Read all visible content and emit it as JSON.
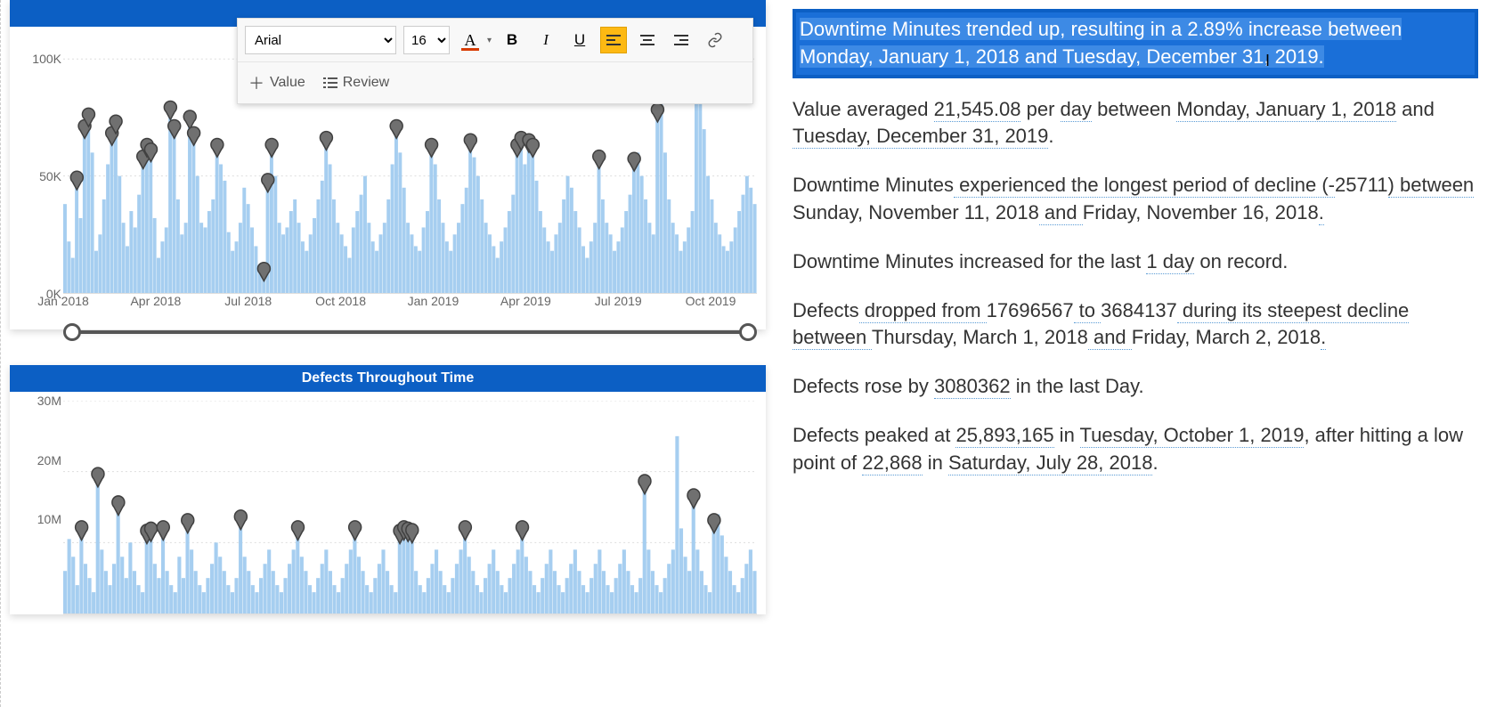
{
  "toolbar": {
    "font_family": "Arial",
    "font_size": "16",
    "font_color": "#d83b01",
    "align_active": "left",
    "value_label": "Value",
    "review_label": "Review"
  },
  "chart1": {
    "type": "bar-with-markers",
    "title_hidden": true,
    "colors": {
      "bar": "#a6cef0",
      "marker_fill": "#707070",
      "marker_stroke": "#404040",
      "header_bg": "#0c5fc4",
      "grid": "#dddddd"
    },
    "y": {
      "max": 110000,
      "ticks": [
        {
          "v": 0,
          "l": "0K"
        },
        {
          "v": 50000,
          "l": "50K"
        },
        {
          "v": 100000,
          "l": "100K"
        }
      ]
    },
    "x_labels": [
      "Jan 2018",
      "Apr 2018",
      "Jul 2018",
      "Oct 2018",
      "Jan 2019",
      "Apr 2019",
      "Jul 2019",
      "Oct 2019"
    ],
    "bars": [
      38000,
      22000,
      15000,
      46000,
      32000,
      68000,
      73000,
      60000,
      18000,
      25000,
      40000,
      55000,
      65000,
      70000,
      50000,
      30000,
      20000,
      35000,
      28000,
      42000,
      55000,
      60000,
      58000,
      32000,
      15000,
      22000,
      28000,
      76000,
      68000,
      40000,
      25000,
      30000,
      72000,
      65000,
      50000,
      30000,
      28000,
      35000,
      40000,
      60000,
      55000,
      48000,
      26000,
      18000,
      22000,
      30000,
      45000,
      38000,
      28000,
      20000,
      12000,
      7000,
      45000,
      60000,
      50000,
      30000,
      25000,
      28000,
      35000,
      40000,
      30000,
      22000,
      18000,
      25000,
      32000,
      40000,
      48000,
      63000,
      55000,
      40000,
      30000,
      25000,
      20000,
      15000,
      28000,
      35000,
      42000,
      50000,
      30000,
      22000,
      18000,
      25000,
      30000,
      40000,
      55000,
      68000,
      60000,
      45000,
      30000,
      25000,
      20000,
      18000,
      28000,
      35000,
      60000,
      55000,
      40000,
      30000,
      22000,
      18000,
      25000,
      30000,
      38000,
      45000,
      62000,
      58000,
      50000,
      40000,
      30000,
      25000,
      20000,
      15000,
      22000,
      28000,
      35000,
      42000,
      60000,
      63000,
      55000,
      62000,
      60000,
      48000,
      35000,
      28000,
      22000,
      18000,
      25000,
      30000,
      40000,
      50000,
      45000,
      35000,
      28000,
      20000,
      15000,
      22000,
      30000,
      55000,
      40000,
      30000,
      25000,
      18000,
      22000,
      28000,
      35000,
      42000,
      54000,
      60000,
      50000,
      40000,
      30000,
      25000,
      75000,
      95000,
      60000,
      40000,
      30000,
      25000,
      18000,
      22000,
      28000,
      35000,
      105000,
      85000,
      70000,
      50000,
      40000,
      30000,
      25000,
      20000,
      18000,
      22000,
      28000,
      35000,
      42000,
      50000,
      45000,
      38000
    ],
    "markers": [
      {
        "i": 3,
        "v": 46000
      },
      {
        "i": 5,
        "v": 68000
      },
      {
        "i": 6,
        "v": 73000
      },
      {
        "i": 12,
        "v": 65000
      },
      {
        "i": 13,
        "v": 70000
      },
      {
        "i": 20,
        "v": 55000
      },
      {
        "i": 21,
        "v": 60000
      },
      {
        "i": 22,
        "v": 58000
      },
      {
        "i": 27,
        "v": 76000
      },
      {
        "i": 28,
        "v": 68000
      },
      {
        "i": 32,
        "v": 72000
      },
      {
        "i": 33,
        "v": 65000
      },
      {
        "i": 39,
        "v": 60000
      },
      {
        "i": 51,
        "v": 7000
      },
      {
        "i": 52,
        "v": 45000
      },
      {
        "i": 53,
        "v": 60000
      },
      {
        "i": 67,
        "v": 63000
      },
      {
        "i": 85,
        "v": 68000
      },
      {
        "i": 94,
        "v": 60000
      },
      {
        "i": 104,
        "v": 62000
      },
      {
        "i": 116,
        "v": 60000
      },
      {
        "i": 117,
        "v": 63000
      },
      {
        "i": 119,
        "v": 62000
      },
      {
        "i": 120,
        "v": 60000
      },
      {
        "i": 137,
        "v": 55000
      },
      {
        "i": 146,
        "v": 54000
      },
      {
        "i": 152,
        "v": 75000
      },
      {
        "i": 153,
        "v": 95000
      },
      {
        "i": 162,
        "v": 105000
      },
      {
        "i": 163,
        "v": 85000
      }
    ]
  },
  "chart2": {
    "type": "bar-with-markers",
    "title": "Defects Throughout Time",
    "colors": {
      "bar": "#a6cef0",
      "marker_fill": "#707070",
      "marker_stroke": "#404040",
      "header_bg": "#0c5fc4"
    },
    "y": {
      "max": 30000000,
      "ticks": [
        {
          "v": 10000000,
          "l": "10M"
        },
        {
          "v": 20000000,
          "l": "20M"
        },
        {
          "v": 30000000,
          "l": "30M"
        }
      ]
    },
    "bars": [
      6000000,
      10500000,
      8000000,
      4000000,
      11000000,
      7000000,
      5000000,
      3000000,
      18500000,
      9000000,
      6000000,
      4000000,
      7000000,
      14500000,
      8000000,
      5000000,
      10000000,
      6000000,
      4000000,
      3000000,
      10500000,
      10800000,
      7000000,
      5000000,
      11000000,
      6000000,
      4000000,
      3000000,
      8000000,
      5000000,
      12000000,
      9000000,
      6000000,
      4000000,
      3000000,
      5000000,
      7000000,
      10000000,
      8000000,
      6000000,
      4000000,
      3000000,
      5000000,
      12500000,
      8000000,
      6000000,
      4000000,
      3000000,
      5000000,
      7000000,
      9000000,
      6000000,
      4000000,
      3000000,
      5000000,
      7000000,
      9000000,
      11000000,
      8000000,
      6000000,
      4000000,
      3000000,
      5000000,
      7000000,
      9000000,
      6000000,
      4000000,
      3000000,
      5000000,
      7000000,
      9000000,
      11000000,
      8000000,
      6000000,
      4000000,
      3000000,
      5000000,
      7000000,
      9000000,
      6000000,
      4000000,
      3000000,
      10500000,
      11000000,
      10800000,
      10600000,
      6000000,
      4000000,
      3000000,
      5000000,
      7000000,
      9000000,
      6000000,
      4000000,
      3000000,
      5000000,
      7000000,
      9000000,
      11000000,
      8000000,
      6000000,
      4000000,
      3000000,
      5000000,
      7000000,
      9000000,
      6000000,
      4000000,
      3000000,
      5000000,
      7000000,
      9000000,
      11000000,
      8000000,
      6000000,
      4000000,
      3000000,
      5000000,
      7000000,
      9000000,
      6000000,
      4000000,
      3000000,
      5000000,
      7000000,
      9000000,
      6000000,
      4000000,
      3000000,
      5000000,
      7000000,
      9000000,
      6000000,
      4000000,
      3000000,
      5000000,
      7000000,
      9000000,
      6000000,
      4000000,
      3000000,
      5000000,
      17500000,
      9000000,
      6000000,
      4000000,
      3000000,
      5000000,
      7000000,
      9000000,
      25000000,
      12000000,
      8000000,
      6000000,
      15500000,
      9000000,
      6000000,
      4000000,
      3000000,
      12000000,
      14000000,
      11000000,
      8000000,
      6000000,
      4000000,
      3000000,
      5000000,
      7000000,
      9000000,
      6000000
    ],
    "markers": [
      {
        "i": 4,
        "v": 11000000
      },
      {
        "i": 8,
        "v": 18500000
      },
      {
        "i": 13,
        "v": 14500000
      },
      {
        "i": 20,
        "v": 10500000
      },
      {
        "i": 21,
        "v": 10800000
      },
      {
        "i": 24,
        "v": 11000000
      },
      {
        "i": 30,
        "v": 12000000
      },
      {
        "i": 43,
        "v": 12500000
      },
      {
        "i": 57,
        "v": 11000000
      },
      {
        "i": 71,
        "v": 11000000
      },
      {
        "i": 82,
        "v": 10500000
      },
      {
        "i": 83,
        "v": 11000000
      },
      {
        "i": 84,
        "v": 10800000
      },
      {
        "i": 85,
        "v": 10600000
      },
      {
        "i": 98,
        "v": 11000000
      },
      {
        "i": 112,
        "v": 11000000
      },
      {
        "i": 142,
        "v": 17500000
      },
      {
        "i": 154,
        "v": 15500000
      },
      {
        "i": 159,
        "v": 12000000
      }
    ]
  },
  "insights": {
    "highlighted": "Downtime Minutes trended up, resulting in a 2.89% increase between Monday, January 1, 2018 and Tuesday, December 31, 2019.",
    "p2_parts": [
      "Value averaged ",
      "21,545.08",
      " per ",
      "day",
      " between ",
      "Monday, January 1, 2018",
      " and ",
      "Tuesday, December 31, 2019",
      "."
    ],
    "p3_parts": [
      "Downtime Minutes",
      " experienced the longest period of decline (-",
      "25711",
      ") between ",
      "Sunday, November 11, 2018",
      " and ",
      "Friday, November 16, 2018",
      "."
    ],
    "p4_parts": [
      "Downtime Minutes increased for the last ",
      "1 day",
      " on record."
    ],
    "p5_parts": [
      "Defects",
      " dropped from ",
      "17696567",
      " to ",
      "3684137",
      " during its steepest decline between ",
      "Thursday, March 1, 2018",
      " and ",
      "Friday, March 2, 2018",
      "."
    ],
    "p6_parts": [
      "Defects rose by ",
      "3080362",
      " in the last Day."
    ],
    "p7_parts": [
      "Defects peaked at ",
      "25,893,165",
      " in ",
      "Tuesday, October 1, 2019",
      ", after hitting a low point of ",
      "22,868",
      " in ",
      "Saturday, July 28, 2018",
      "."
    ]
  }
}
